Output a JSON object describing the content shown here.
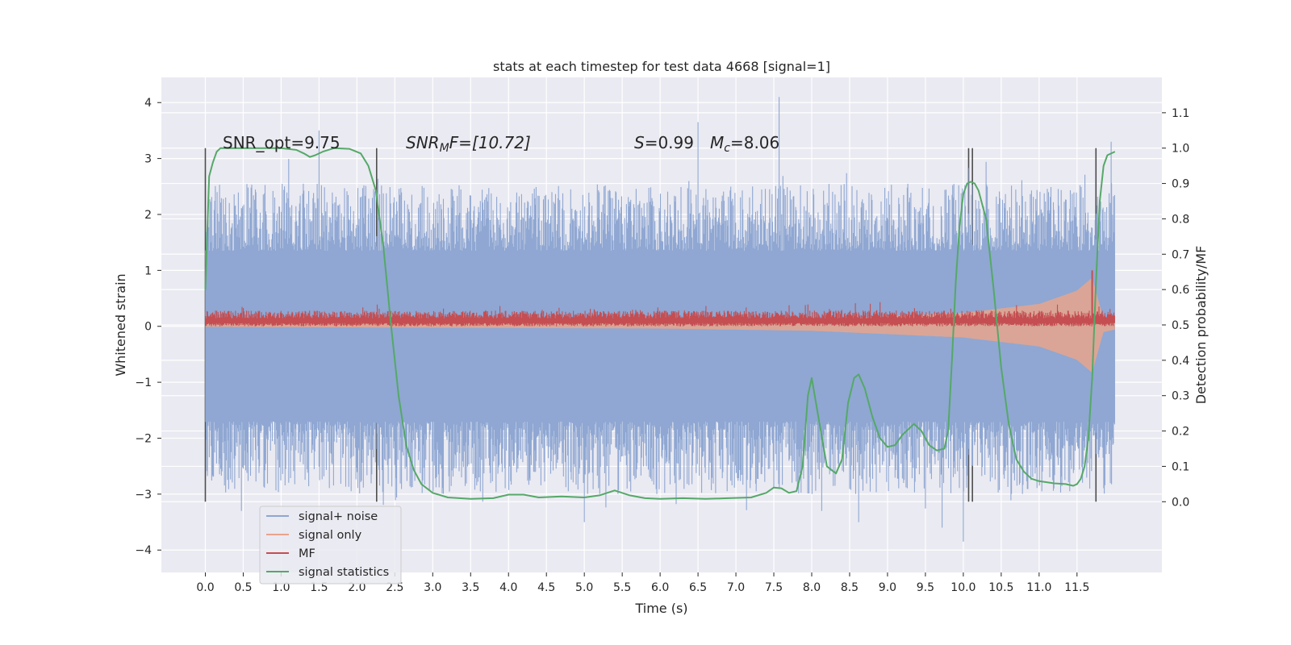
{
  "chart_data": {
    "type": "line",
    "title": "stats at each timestep for test data 4668 [signal=1]",
    "xlabel": "Time (s)",
    "ylabel_left": "Whitened strain",
    "ylabel_right": "Detection probability/MF",
    "xlim": [
      -0.58,
      12.62
    ],
    "ylim_left": [
      -4.4,
      4.45
    ],
    "ylim_right": [
      -0.2,
      1.2
    ],
    "x_ticks": [
      0.0,
      0.5,
      1.0,
      1.5,
      2.0,
      2.5,
      3.0,
      3.5,
      4.0,
      4.5,
      5.0,
      5.5,
      6.0,
      6.5,
      7.0,
      7.5,
      8.0,
      8.5,
      9.0,
      9.5,
      10.0,
      10.5,
      11.0,
      11.5
    ],
    "x_tick_labels": [
      "0.0",
      "0.5",
      "1.0",
      "1.5",
      "2.0",
      "2.5",
      "3.0",
      "3.5",
      "4.0",
      "4.5",
      "5.0",
      "5.5",
      "6.0",
      "6.5",
      "7.0",
      "7.5",
      "8.0",
      "8.5",
      "9.0",
      "9.5",
      "10.0",
      "10.5",
      "11.0",
      "11.5"
    ],
    "y_left_ticks": [
      4,
      3,
      2,
      1,
      0,
      -1,
      -2,
      -3,
      -4
    ],
    "y_left_tick_labels": [
      "4",
      "3",
      "2",
      "1",
      "0",
      "−1",
      "−2",
      "−3",
      "−4"
    ],
    "y_right_ticks": [
      1.1,
      1.0,
      0.9,
      0.8,
      0.7,
      0.6,
      0.5,
      0.4,
      0.3,
      0.2,
      0.1,
      0.0
    ],
    "y_right_tick_labels": [
      "1.1",
      "1.0",
      "0.9",
      "0.8",
      "0.7",
      "0.6",
      "0.5",
      "0.4",
      "0.3",
      "0.2",
      "0.1",
      "0.0"
    ],
    "grid": true,
    "legend_position": "lower-left",
    "annotations": {
      "snr_opt": "SNR_opt=9.75",
      "snr_mf_main": "SNR",
      "snr_mf_sub": "M",
      "snr_mf_rest": "F=[10.72]",
      "s_var": "S",
      "s_rest": "=0.99",
      "mc_var": "M",
      "mc_sub": "c",
      "mc_rest": "=8.06"
    },
    "series": [
      {
        "name": "signal+ noise",
        "color": "#8fa7d2",
        "kind": "noise-band",
        "t_range": [
          0.0,
          12.0
        ],
        "core_band": [
          -1.7,
          1.35
        ],
        "spike_extents": [
          -3.85,
          4.1
        ]
      },
      {
        "name": "signal only",
        "color": "#e8a48c",
        "kind": "chirp-envelope",
        "t_range": [
          0.0,
          12.0
        ],
        "offset": 0.02,
        "envelope": [
          [
            0.0,
            0.03
          ],
          [
            6.0,
            0.06
          ],
          [
            8.0,
            0.1
          ],
          [
            10.0,
            0.22
          ],
          [
            11.0,
            0.38
          ],
          [
            11.5,
            0.62
          ],
          [
            11.7,
            0.85
          ],
          [
            11.85,
            0.12
          ],
          [
            12.0,
            0.08
          ]
        ]
      },
      {
        "name": "MF",
        "color": "#c44e52",
        "kind": "mf-band",
        "t_range": [
          0.0,
          12.0
        ],
        "band": [
          0.0,
          0.32
        ],
        "peak": [
          11.7,
          1.0
        ]
      },
      {
        "name": "signal statistics",
        "color": "#55a868",
        "axis": "right",
        "x": [
          0.0,
          0.05,
          0.1,
          0.15,
          0.2,
          0.3,
          0.5,
          0.7,
          1.0,
          1.2,
          1.3,
          1.38,
          1.45,
          1.55,
          1.7,
          1.9,
          2.05,
          2.15,
          2.25,
          2.35,
          2.45,
          2.55,
          2.65,
          2.75,
          2.85,
          3.0,
          3.2,
          3.5,
          3.8,
          4.0,
          4.2,
          4.4,
          4.7,
          5.0,
          5.2,
          5.4,
          5.6,
          5.8,
          6.0,
          6.3,
          6.6,
          6.9,
          7.2,
          7.4,
          7.5,
          7.6,
          7.7,
          7.8,
          7.88,
          7.95,
          8.0,
          8.08,
          8.2,
          8.32,
          8.4,
          8.48,
          8.56,
          8.62,
          8.7,
          8.8,
          8.9,
          9.0,
          9.1,
          9.2,
          9.35,
          9.45,
          9.55,
          9.65,
          9.75,
          9.8,
          9.85,
          9.9,
          9.95,
          10.0,
          10.05,
          10.1,
          10.15,
          10.2,
          10.3,
          10.4,
          10.5,
          10.6,
          10.7,
          10.8,
          10.9,
          11.0,
          11.2,
          11.35,
          11.45,
          11.5,
          11.55,
          11.6,
          11.65,
          11.7,
          11.75,
          11.8,
          11.85,
          11.9,
          12.0
        ],
        "y": [
          0.6,
          0.92,
          0.96,
          0.99,
          1.0,
          1.0,
          1.0,
          1.0,
          1.0,
          0.995,
          0.985,
          0.975,
          0.98,
          0.99,
          1.0,
          0.998,
          0.985,
          0.95,
          0.88,
          0.72,
          0.5,
          0.3,
          0.16,
          0.09,
          0.05,
          0.025,
          0.012,
          0.008,
          0.01,
          0.02,
          0.02,
          0.012,
          0.015,
          0.012,
          0.018,
          0.032,
          0.018,
          0.01,
          0.008,
          0.01,
          0.008,
          0.01,
          0.012,
          0.025,
          0.04,
          0.038,
          0.025,
          0.03,
          0.1,
          0.3,
          0.35,
          0.25,
          0.1,
          0.08,
          0.12,
          0.28,
          0.35,
          0.36,
          0.32,
          0.24,
          0.18,
          0.155,
          0.16,
          0.19,
          0.22,
          0.2,
          0.16,
          0.145,
          0.15,
          0.2,
          0.4,
          0.62,
          0.78,
          0.87,
          0.9,
          0.905,
          0.9,
          0.88,
          0.8,
          0.6,
          0.38,
          0.22,
          0.12,
          0.085,
          0.065,
          0.058,
          0.052,
          0.05,
          0.045,
          0.05,
          0.065,
          0.1,
          0.18,
          0.35,
          0.62,
          0.85,
          0.95,
          0.98,
          0.99
        ]
      }
    ],
    "vertical_markers": [
      0.0,
      2.26,
      10.07,
      10.12,
      11.75
    ]
  }
}
